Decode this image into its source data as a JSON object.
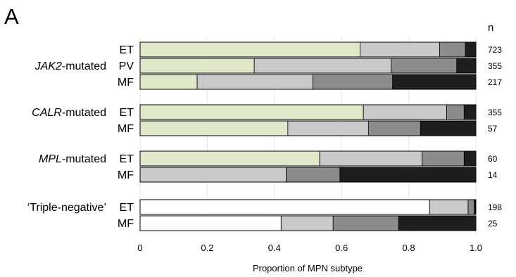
{
  "panel_label": "A",
  "n_header": "n",
  "colors": {
    "seg1": "#dfe8c9",
    "seg1_triple": "#ffffff",
    "seg2": "#c9c9c9",
    "seg3": "#8c8c8c",
    "seg4": "#1e1e1e",
    "grid": "#e6e6e6"
  },
  "chart_data": {
    "type": "bar",
    "orientation": "horizontal",
    "stacked": true,
    "xlabel": "Proportion of MPN subtype",
    "xlim": [
      0,
      1
    ],
    "xticks": [
      "0",
      "0.2",
      "0.4",
      "0.6",
      "0.8",
      "1.0"
    ],
    "grid": true,
    "groups": [
      {
        "label_italic": "JAK2",
        "label_rest": "-mutated",
        "bars": [
          {
            "subtype": "ET",
            "n": "723",
            "values": [
              0.655,
              0.237,
              0.077,
              0.031
            ]
          },
          {
            "subtype": "PV",
            "n": "355",
            "values": [
              0.34,
              0.408,
              0.195,
              0.057
            ]
          },
          {
            "subtype": "MF",
            "n": "217",
            "values": [
              0.17,
              0.345,
              0.237,
              0.248
            ]
          }
        ]
      },
      {
        "label_italic": "CALR",
        "label_rest": "-mutated",
        "bars": [
          {
            "subtype": "ET",
            "n": "355",
            "values": [
              0.665,
              0.248,
              0.052,
              0.035
            ]
          },
          {
            "subtype": "MF",
            "n": "57",
            "values": [
              0.44,
              0.24,
              0.155,
              0.165
            ]
          }
        ]
      },
      {
        "label_italic": "MPL",
        "label_rest": "-mutated",
        "bars": [
          {
            "subtype": "ET",
            "n": "60",
            "values": [
              0.535,
              0.305,
              0.125,
              0.035
            ]
          },
          {
            "subtype": "MF",
            "n": "14",
            "values": [
              0.0,
              0.435,
              0.16,
              0.405
            ]
          }
        ]
      },
      {
        "label_italic": "",
        "label_rest": "‘Triple-negative’",
        "triple": true,
        "bars": [
          {
            "subtype": "ET",
            "n": "198",
            "values": [
              0.862,
              0.115,
              0.018,
              0.005
            ]
          },
          {
            "subtype": "MF",
            "n": "25",
            "values": [
              0.42,
              0.155,
              0.195,
              0.23
            ]
          }
        ]
      }
    ]
  }
}
